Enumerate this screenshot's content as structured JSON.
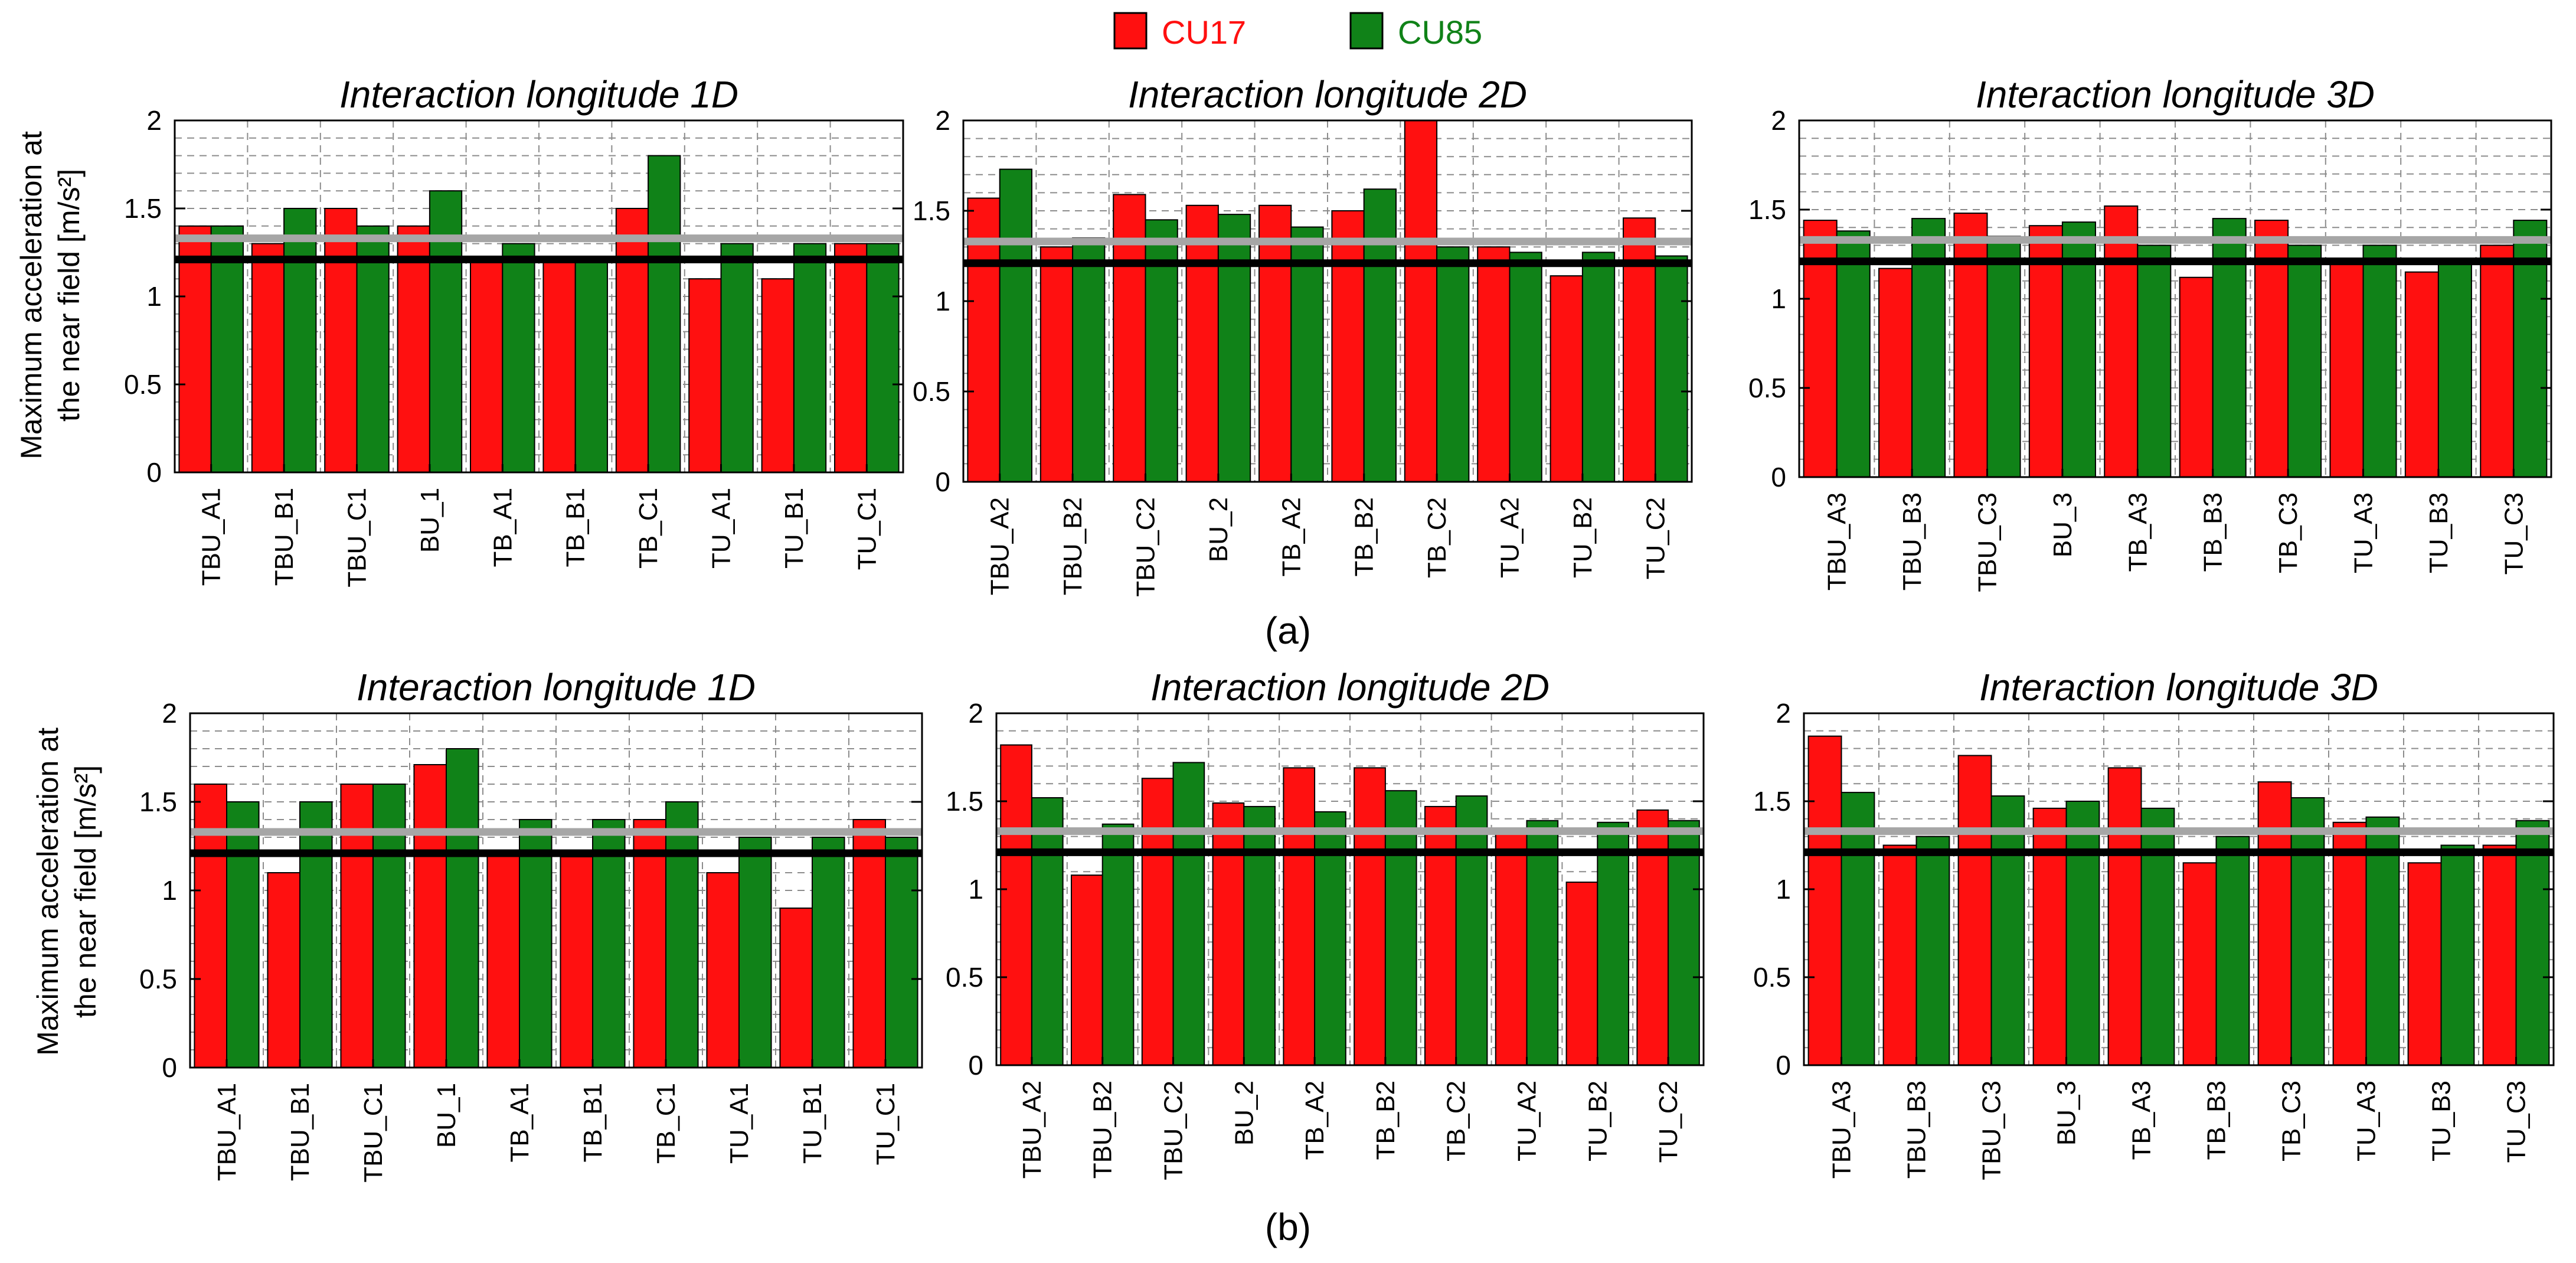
{
  "legend": [
    {
      "label": "CU17",
      "color": "#ff1010"
    },
    {
      "label": "CU85",
      "color": "#108218"
    }
  ],
  "subfigure_labels": [
    "(a)",
    "(b)"
  ],
  "y_axis_label_lines": [
    "Maximum acceleration at",
    "the near field [m/s²]"
  ],
  "chart_data": [
    {
      "type": "bar",
      "row": "a",
      "title": "Interaction longitude 1D",
      "ylabel": "Maximum acceleration at the near field [m/s2]",
      "ylim": [
        0,
        2
      ],
      "yticks": [
        "0",
        "0.5",
        "1",
        "1.5",
        "2"
      ],
      "categories": [
        "TBU_A1",
        "TBU_B1",
        "TBU_C1",
        "BU_1",
        "TB_A1",
        "TB_B1",
        "TB_C1",
        "TU_A1",
        "TU_B1",
        "TU_C1"
      ],
      "series": [
        {
          "name": "CU17",
          "values": [
            1.4,
            1.3,
            1.5,
            1.4,
            1.2,
            1.2,
            1.5,
            1.1,
            1.1,
            1.3
          ]
        },
        {
          "name": "CU85",
          "values": [
            1.4,
            1.5,
            1.4,
            1.6,
            1.3,
            1.2,
            1.8,
            1.3,
            1.3,
            1.3
          ]
        }
      ],
      "reference_lines": [
        {
          "color": "gray",
          "y": 1.33
        },
        {
          "color": "black",
          "y": 1.21
        }
      ]
    },
    {
      "type": "bar",
      "row": "a",
      "title": "Interaction longitude 2D",
      "ylabel": "Maximum acceleration at the near field [m/s2]",
      "ylim": [
        0,
        2
      ],
      "yticks": [
        "0",
        "0.5",
        "1",
        "1.5",
        "2"
      ],
      "categories": [
        "TBU_A2",
        "TBU_B2",
        "TBU_C2",
        "BU_2",
        "TB_A2",
        "TB_B2",
        "TB_C2",
        "TU_A2",
        "TU_B2",
        "TU_C2"
      ],
      "series": [
        {
          "name": "CU17",
          "values": [
            1.57,
            1.3,
            1.59,
            1.53,
            1.53,
            1.5,
            2.0,
            1.3,
            1.14,
            1.46
          ]
        },
        {
          "name": "CU85",
          "values": [
            1.73,
            1.35,
            1.45,
            1.48,
            1.41,
            1.62,
            1.3,
            1.27,
            1.27,
            1.25
          ]
        }
      ],
      "reference_lines": [
        {
          "color": "gray",
          "y": 1.33
        },
        {
          "color": "black",
          "y": 1.21
        }
      ]
    },
    {
      "type": "bar",
      "row": "a",
      "title": "Interaction longitude 3D",
      "ylabel": "Maximum acceleration at the near field [m/s2]",
      "ylim": [
        0,
        2
      ],
      "yticks": [
        "0",
        "0.5",
        "1",
        "1.5",
        "2"
      ],
      "categories": [
        "TBU_A3",
        "TBU_B3",
        "TBU_C3",
        "BU_3",
        "TB_A3",
        "TB_B3",
        "TB_C3",
        "TU_A3",
        "TU_B3",
        "TU_C3"
      ],
      "series": [
        {
          "name": "CU17",
          "values": [
            1.44,
            1.17,
            1.48,
            1.41,
            1.52,
            1.12,
            1.44,
            1.22,
            1.15,
            1.3
          ]
        },
        {
          "name": "CU85",
          "values": [
            1.38,
            1.45,
            1.35,
            1.43,
            1.3,
            1.45,
            1.3,
            1.3,
            1.22,
            1.44
          ]
        }
      ],
      "reference_lines": [
        {
          "color": "gray",
          "y": 1.33
        },
        {
          "color": "black",
          "y": 1.21
        }
      ]
    },
    {
      "type": "bar",
      "row": "b",
      "title": "Interaction longitude 1D",
      "ylabel": "Maximum acceleration at the near field [m/s2]",
      "ylim": [
        0,
        2
      ],
      "yticks": [
        "0",
        "0.5",
        "1",
        "1.5",
        "2"
      ],
      "categories": [
        "TBU_A1",
        "TBU_B1",
        "TBU_C1",
        "BU_1",
        "TB_A1",
        "TB_B1",
        "TB_C1",
        "TU_A1",
        "TU_B1",
        "TU_C1"
      ],
      "series": [
        {
          "name": "CU17",
          "values": [
            1.6,
            1.1,
            1.6,
            1.71,
            1.2,
            1.19,
            1.4,
            1.1,
            0.9,
            1.4
          ]
        },
        {
          "name": "CU85",
          "values": [
            1.5,
            1.5,
            1.6,
            1.8,
            1.4,
            1.4,
            1.5,
            1.3,
            1.3,
            1.3
          ]
        }
      ],
      "reference_lines": [
        {
          "color": "gray",
          "y": 1.33
        },
        {
          "color": "black",
          "y": 1.21
        }
      ]
    },
    {
      "type": "bar",
      "row": "b",
      "title": "Interaction longitude 2D",
      "ylabel": "Maximum acceleration at the near field [m/s2]",
      "ylim": [
        0,
        2
      ],
      "yticks": [
        "0",
        "0.5",
        "1",
        "1.5",
        "2"
      ],
      "categories": [
        "TBU_A2",
        "TBU_B2",
        "TBU_C2",
        "BU_2",
        "TB_A2",
        "TB_B2",
        "TB_C2",
        "TU_A2",
        "TU_B2",
        "TU_C2"
      ],
      "series": [
        {
          "name": "CU17",
          "values": [
            1.82,
            1.08,
            1.63,
            1.49,
            1.69,
            1.69,
            1.47,
            1.33,
            1.04,
            1.45
          ]
        },
        {
          "name": "CU85",
          "values": [
            1.52,
            1.37,
            1.72,
            1.47,
            1.44,
            1.56,
            1.53,
            1.39,
            1.38,
            1.39
          ]
        }
      ],
      "reference_lines": [
        {
          "color": "gray",
          "y": 1.33
        },
        {
          "color": "black",
          "y": 1.21
        }
      ]
    },
    {
      "type": "bar",
      "row": "b",
      "title": "Interaction longitude 3D",
      "ylabel": "Maximum acceleration at the near field [m/s2]",
      "ylim": [
        0,
        2
      ],
      "yticks": [
        "0",
        "0.5",
        "1",
        "1.5",
        "2"
      ],
      "categories": [
        "TBU_A3",
        "TBU_B3",
        "TBU_C3",
        "BU_3",
        "TB_A3",
        "TB_B3",
        "TB_C3",
        "TU_A3",
        "TU_B3",
        "TU_C3"
      ],
      "series": [
        {
          "name": "CU17",
          "values": [
            1.87,
            1.25,
            1.76,
            1.46,
            1.69,
            1.15,
            1.61,
            1.38,
            1.15,
            1.25
          ]
        },
        {
          "name": "CU85",
          "values": [
            1.55,
            1.3,
            1.53,
            1.5,
            1.46,
            1.3,
            1.52,
            1.41,
            1.25,
            1.39
          ]
        }
      ],
      "reference_lines": [
        {
          "color": "gray",
          "y": 1.33
        },
        {
          "color": "black",
          "y": 1.21
        }
      ]
    }
  ]
}
